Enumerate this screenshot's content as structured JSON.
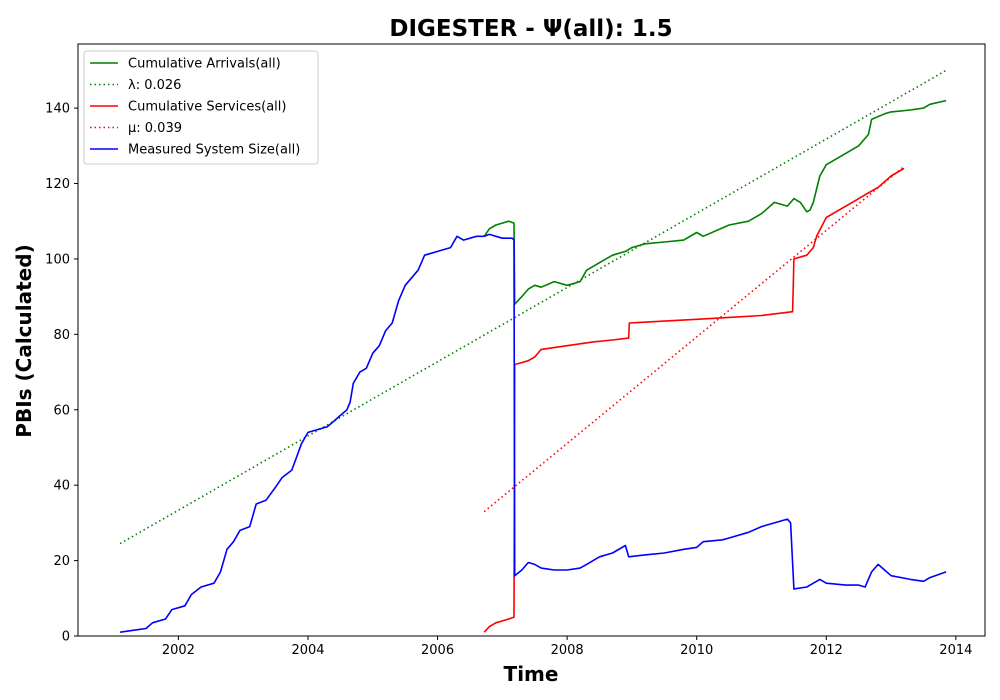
{
  "chart_data": {
    "type": "line",
    "title": "DIGESTER -  Ψ(all): 1.5",
    "xlabel": "Time",
    "ylabel": "PBIs (Calculated)",
    "xlim": [
      2000.45,
      2014.45
    ],
    "ylim": [
      0,
      157
    ],
    "x_ticks": [
      2002,
      2004,
      2006,
      2008,
      2010,
      2012,
      2014
    ],
    "x_tick_labels": [
      "2002",
      "2004",
      "2006",
      "2008",
      "2010",
      "2012",
      "2014"
    ],
    "y_ticks": [
      0,
      20,
      40,
      60,
      80,
      100,
      120,
      140
    ],
    "y_tick_labels": [
      "0",
      "20",
      "40",
      "60",
      "80",
      "100",
      "120",
      "140"
    ],
    "grid": false,
    "legend_position": "upper-left",
    "series": [
      {
        "name": "Cumulative Arrivals(all)",
        "color": "#008000",
        "style": "solid",
        "x": [
          2006.72,
          2006.8,
          2006.9,
          2007.0,
          2007.1,
          2007.18,
          2007.19,
          2007.3,
          2007.4,
          2007.5,
          2007.6,
          2007.8,
          2008.0,
          2008.2,
          2008.3,
          2008.5,
          2008.7,
          2008.9,
          2009.0,
          2009.2,
          2009.5,
          2009.8,
          2010.0,
          2010.1,
          2010.5,
          2010.8,
          2011.0,
          2011.2,
          2011.4,
          2011.5,
          2011.6,
          2011.7,
          2011.75,
          2011.8,
          2011.9,
          2012.0,
          2012.3,
          2012.5,
          2012.65,
          2012.7,
          2012.9,
          2013.0,
          2013.3,
          2013.5,
          2013.6,
          2013.85
        ],
        "y": [
          106,
          108,
          109,
          109.5,
          110,
          109.5,
          88,
          90,
          92,
          93,
          92.5,
          94,
          93,
          94,
          97,
          99,
          101,
          102,
          103,
          104,
          104.5,
          105,
          107,
          106,
          109,
          110,
          112,
          115,
          114,
          116,
          115,
          112.5,
          113,
          115,
          122,
          125,
          128,
          130,
          133,
          137,
          138.5,
          139,
          139.5,
          140,
          141,
          142
        ]
      },
      {
        "name": "λ: 0.026",
        "color": "#008000",
        "style": "dotted",
        "x": [
          2001.1,
          2013.85
        ],
        "y": [
          24.5,
          150
        ]
      },
      {
        "name": "Cumulative Services(all)",
        "color": "#ff0000",
        "style": "solid",
        "x": [
          2006.72,
          2006.8,
          2006.9,
          2007.0,
          2007.1,
          2007.18,
          2007.19,
          2007.3,
          2007.4,
          2007.5,
          2007.6,
          2008.0,
          2008.4,
          2008.7,
          2008.95,
          2008.96,
          2009.5,
          2010.0,
          2010.5,
          2011.0,
          2011.48,
          2011.49,
          2011.5,
          2011.7,
          2011.8,
          2011.85,
          2012.0,
          2012.2,
          2012.4,
          2012.6,
          2012.8,
          2013.0,
          2013.2
        ],
        "y": [
          1,
          2.5,
          3.5,
          4,
          4.5,
          5,
          72,
          72.5,
          73,
          74,
          76,
          77,
          78,
          78.5,
          79,
          83,
          83.5,
          84,
          84.5,
          85,
          86,
          92,
          100,
          101,
          103,
          106,
          111,
          113,
          115,
          117,
          119,
          122,
          124
        ]
      },
      {
        "name": "μ: 0.039",
        "color": "#ff0000",
        "style": "dotted",
        "x": [
          2006.72,
          2013.2
        ],
        "y": [
          33,
          124.5
        ]
      },
      {
        "name": "Measured System Size(all)",
        "color": "#0000ff",
        "style": "solid",
        "x": [
          2001.1,
          2001.3,
          2001.5,
          2001.6,
          2001.8,
          2001.9,
          2002.1,
          2002.2,
          2002.35,
          2002.55,
          2002.65,
          2002.75,
          2002.85,
          2002.95,
          2003.1,
          2003.2,
          2003.35,
          2003.5,
          2003.6,
          2003.75,
          2003.9,
          2004.0,
          2004.2,
          2004.3,
          2004.4,
          2004.5,
          2004.6,
          2004.65,
          2004.7,
          2004.8,
          2004.9,
          2005.0,
          2005.1,
          2005.2,
          2005.3,
          2005.4,
          2005.5,
          2005.6,
          2005.7,
          2005.8,
          2005.9,
          2006.0,
          2006.2,
          2006.3,
          2006.4,
          2006.6,
          2006.72,
          2006.8,
          2006.9,
          2007.0,
          2007.15,
          2007.18,
          2007.19,
          2007.3,
          2007.4,
          2007.5,
          2007.6,
          2007.8,
          2008.0,
          2008.2,
          2008.3,
          2008.5,
          2008.7,
          2008.9,
          2008.95,
          2009.2,
          2009.5,
          2009.8,
          2010.0,
          2010.1,
          2010.4,
          2010.5,
          2010.8,
          2011.0,
          2011.2,
          2011.4,
          2011.45,
          2011.5,
          2011.7,
          2011.75,
          2011.8,
          2011.9,
          2012.0,
          2012.3,
          2012.5,
          2012.6,
          2012.7,
          2012.8,
          2013.0,
          2013.3,
          2013.5,
          2013.6,
          2013.85
        ],
        "y": [
          1,
          1.5,
          2,
          3.5,
          4.5,
          7,
          8,
          11,
          13,
          14,
          17,
          23,
          25,
          28,
          29,
          35,
          36,
          39.5,
          42,
          44,
          51,
          54,
          55,
          55.5,
          57,
          58.5,
          60,
          62,
          67,
          70,
          71,
          75,
          77,
          81,
          83,
          89,
          93,
          95,
          97,
          101,
          101.5,
          102,
          103,
          106,
          105,
          106,
          106,
          106.5,
          106,
          105.5,
          105.5,
          105,
          16,
          17.5,
          19.5,
          19,
          18,
          17.5,
          17.5,
          18,
          19,
          21,
          22,
          24,
          21,
          21.5,
          22,
          23,
          23.5,
          25,
          25.5,
          26,
          27.5,
          29,
          30,
          31,
          30,
          12.5,
          13,
          13.5,
          14,
          15,
          14,
          13.5,
          13.5,
          13,
          17,
          19,
          16,
          15,
          14.5,
          15.5,
          17
        ]
      }
    ]
  }
}
